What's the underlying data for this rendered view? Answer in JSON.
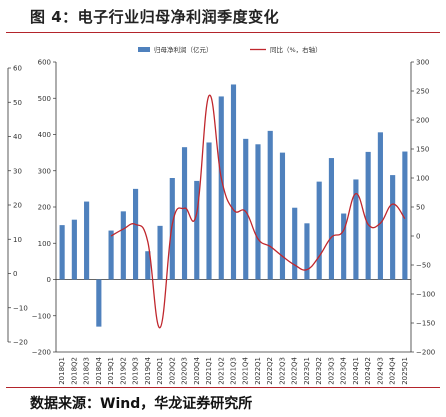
{
  "figure_title": "图 4：电子行业归母净利润季度变化",
  "source": "数据来源：Wind，华龙证券研究所",
  "colors": {
    "bar": "#4f81bd",
    "line": "#c0272d",
    "rule": "#b3242b",
    "axis": "#333333"
  },
  "chart_data": {
    "type": "bar",
    "title": "",
    "xlabel": "",
    "ylabel": "",
    "ylim": [
      -200,
      600
    ],
    "y2lim": [
      -200,
      300
    ],
    "outer_left_axis": {
      "ylim": [
        -20,
        60
      ],
      "ticks": [
        "−20",
        "−10",
        "0",
        "10",
        "20",
        "30",
        "40",
        "50",
        "60"
      ]
    },
    "y_ticks": [
      "−200",
      "−100",
      "0",
      "100",
      "200",
      "300",
      "400",
      "500",
      "600"
    ],
    "y2_ticks": [
      "−200",
      "−150",
      "−100",
      "−50",
      "0",
      "50",
      "100",
      "150",
      "200",
      "250",
      "300"
    ],
    "legend": {
      "position": "top-center"
    },
    "categories": [
      "2018Q1",
      "2018Q2",
      "2018Q3",
      "2018Q4",
      "2019Q1",
      "2019Q2",
      "2019Q3",
      "2019Q4",
      "2020Q1",
      "2020Q2",
      "2020Q3",
      "2020Q4",
      "2021Q1",
      "2021Q2",
      "2021Q3",
      "2021Q4",
      "2022Q1",
      "2022Q2",
      "2022Q3",
      "2022Q4",
      "2023Q1",
      "2023Q2",
      "2023Q3",
      "2023Q4",
      "2024Q1",
      "2024Q2",
      "2024Q3",
      "2024Q4",
      "2025Q1"
    ],
    "series": [
      {
        "name": "归母净利润（亿元）",
        "type": "bar",
        "axis": "left",
        "values": [
          150,
          165,
          215,
          -130,
          135,
          188,
          250,
          78,
          148,
          280,
          365,
          272,
          378,
          505,
          538,
          388,
          373,
          410,
          350,
          198,
          155,
          270,
          335,
          182,
          276,
          352,
          406,
          288,
          353
        ]
      },
      {
        "name": "同比（%，右轴）",
        "type": "line",
        "axis": "right",
        "values": [
          null,
          null,
          null,
          null,
          0,
          12,
          20,
          -10,
          -158,
          20,
          48,
          40,
          242,
          100,
          45,
          42,
          -5,
          -18,
          -35,
          -50,
          -58,
          -35,
          -2,
          10,
          73,
          20,
          22,
          55,
          30
        ]
      }
    ]
  }
}
